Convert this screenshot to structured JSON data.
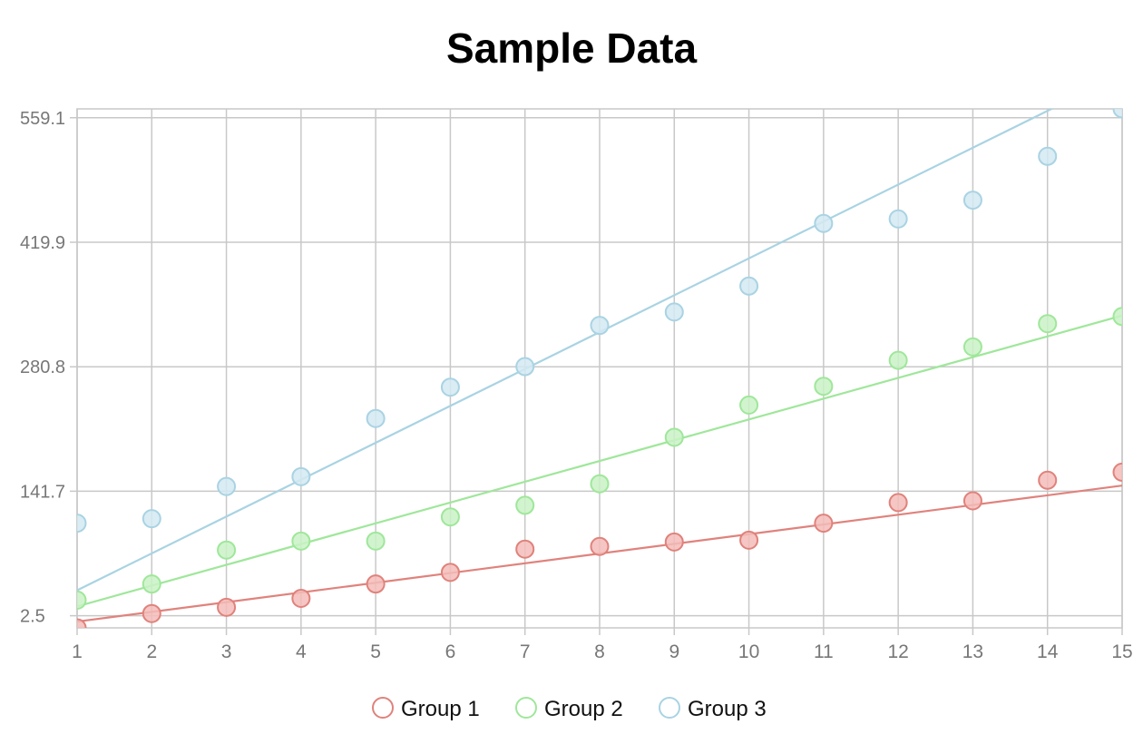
{
  "chart_data": {
    "type": "scatter",
    "title": "Sample Data",
    "xlabel": "",
    "ylabel": "",
    "xlim": [
      1,
      15
    ],
    "ylim": [
      -11,
      569
    ],
    "x_ticks": [
      1,
      2,
      3,
      4,
      5,
      6,
      7,
      8,
      9,
      10,
      11,
      12,
      13,
      14,
      15
    ],
    "y_ticks": [
      2.5,
      141.7,
      280.8,
      419.9,
      559.1
    ],
    "y_tick_labels": [
      "2.5",
      "141.7",
      "280.8",
      "419.9",
      "559.1"
    ],
    "grid": true,
    "legend_position": "bottom",
    "x": [
      1,
      2,
      3,
      4,
      5,
      6,
      7,
      8,
      9,
      10,
      11,
      12,
      13,
      14,
      15
    ],
    "series": [
      {
        "name": "Group 1",
        "color": "#e0827c",
        "fill": "#f3bcb9",
        "values": [
          -11,
          5,
          12,
          22,
          38,
          51,
          77,
          80,
          85,
          87,
          106,
          129,
          131,
          154,
          163
        ],
        "trendline": [
          -4,
          148
        ]
      },
      {
        "name": "Group 2",
        "color": "#9fe79a",
        "fill": "#c9f2c6",
        "values": [
          20,
          38,
          76,
          86,
          86,
          113,
          126,
          150,
          202,
          238,
          259,
          288,
          303,
          329,
          337
        ],
        "trendline": [
          13,
          338
        ]
      },
      {
        "name": "Group 3",
        "color": "#a9d3e3",
        "fill": "#d3e9f2",
        "values": [
          106,
          111,
          147,
          158,
          223,
          258,
          281,
          327,
          342,
          371,
          441,
          446,
          467,
          516,
          569
        ],
        "trendline": [
          31,
          608
        ]
      }
    ]
  }
}
